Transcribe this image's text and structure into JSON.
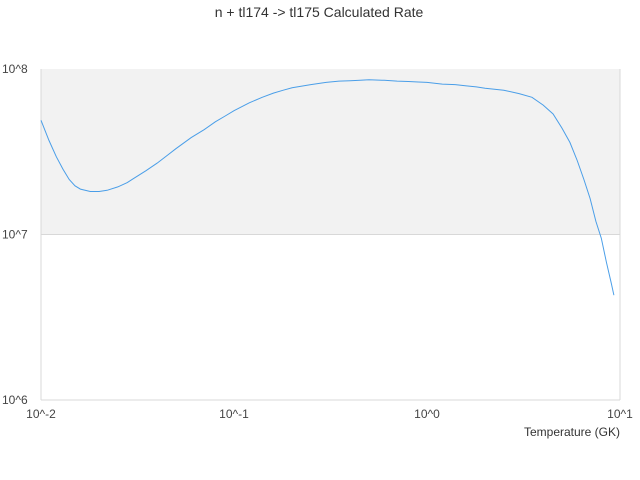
{
  "chart_data": {
    "type": "line",
    "title": "n + tl174 -> tl175 Calculated Rate",
    "xlabel": "Temperature (GK)",
    "ylabel": "",
    "x_scale": "log",
    "y_scale": "log",
    "xlim": [
      0.01,
      10
    ],
    "ylim": [
      1000000,
      100000000
    ],
    "x_tick_labels": [
      "10^-2",
      "10^-1",
      "10^0",
      "10^1"
    ],
    "y_tick_labels": [
      "10^6",
      "10^7",
      "10^8"
    ],
    "shaded_band": [
      10000000,
      100000000
    ],
    "grid": false,
    "legend": "none",
    "colors": {
      "line": "#4a9ee8",
      "band": "#f2f2f2",
      "axis": "#d8d8d8",
      "text": "#333333"
    },
    "series": [
      {
        "x": [
          0.01,
          0.011,
          0.012,
          0.013,
          0.014,
          0.015,
          0.016,
          0.018,
          0.02,
          0.022,
          0.025,
          0.028,
          0.03,
          0.035,
          0.04,
          0.045,
          0.05,
          0.06,
          0.07,
          0.08,
          0.09,
          0.1,
          0.12,
          0.14,
          0.16,
          0.18,
          0.2,
          0.25,
          0.3,
          0.35,
          0.4,
          0.45,
          0.5,
          0.6,
          0.7,
          0.8,
          0.9,
          1.0,
          1.2,
          1.4,
          1.6,
          1.8,
          2.0,
          2.5,
          3.0,
          3.5,
          4.0,
          4.5,
          5.0,
          5.5,
          6.0,
          6.5,
          7.0,
          7.5,
          8.0,
          8.5,
          9.0,
          9.3
        ],
        "y": [
          49000000,
          37000000,
          29500000,
          24800000,
          21500000,
          19700000,
          18800000,
          18200000,
          18200000,
          18500000,
          19400000,
          20600000,
          21700000,
          24300000,
          27000000,
          30000000,
          33000000,
          38500000,
          43000000,
          48000000,
          52000000,
          56000000,
          62500000,
          67500000,
          71500000,
          74500000,
          77000000,
          80500000,
          83000000,
          84500000,
          85000000,
          85500000,
          86000000,
          85500000,
          84500000,
          84000000,
          83500000,
          83000000,
          81000000,
          80500000,
          79000000,
          78000000,
          76500000,
          74500000,
          71000000,
          67500000,
          60500000,
          53500000,
          44000000,
          36000000,
          28000000,
          21500000,
          16500000,
          12000000,
          9500000,
          6800000,
          5100000,
          4300000
        ]
      }
    ]
  }
}
